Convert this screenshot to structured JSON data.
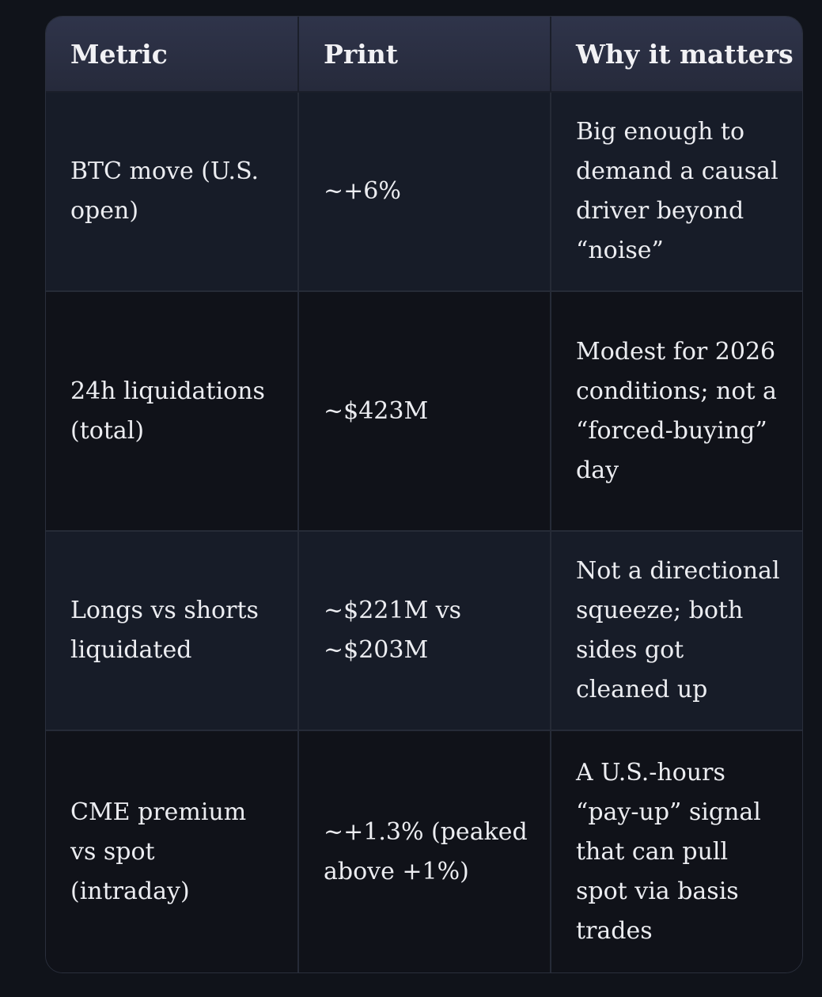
{
  "table": {
    "headers": [
      "Metric",
      "Print",
      "Why it matters"
    ],
    "rows": [
      {
        "metric": "BTC move (U.S. open)",
        "print": "~+6%",
        "why": "Big enough to demand a causal driver beyond “noise”"
      },
      {
        "metric": "24h liquidations (total)",
        "print": "~$423M",
        "why": "Modest for 2026 conditions; not a “forced-buying” day"
      },
      {
        "metric": "Longs vs shorts liquidated",
        "print": "~$221M vs ~$203M",
        "why": "Not a directional squeeze; both sides got cleaned up"
      },
      {
        "metric": "CME premium vs spot (intraday)",
        "print": "~+1.3% (peaked above +1%)",
        "why": "A U.S.-hours “pay-up” signal that can pull spot via basis trades"
      }
    ]
  }
}
